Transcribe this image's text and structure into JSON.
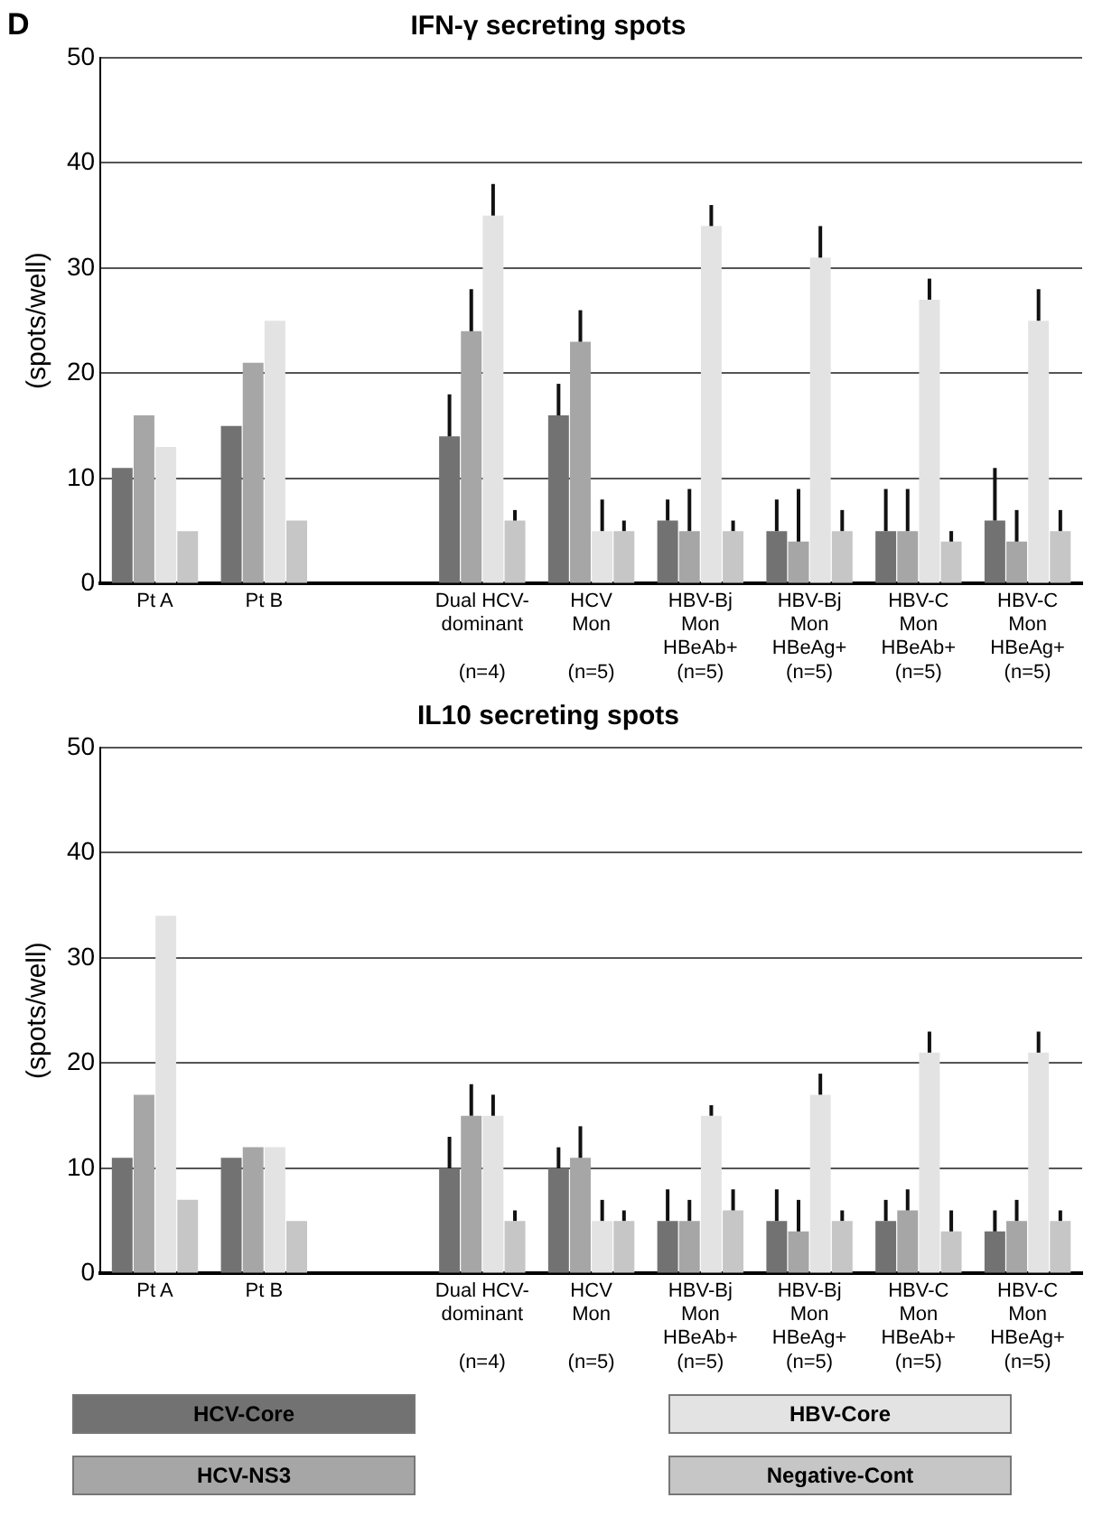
{
  "chart_data": [
    {
      "type": "bar",
      "title": "IFN-γ secreting spots",
      "ylabel": "(spots/well)",
      "annotations": [
        "D"
      ],
      "categories": [
        "Pt A",
        "Pt B",
        null,
        "Dual HCV-\ndominant\n\n(n=4)",
        "HCV\nMon\n\n(n=5)",
        "HBV-Bj\nMon\nHBeAb+\n(n=5)",
        "HBV-Bj\nMon\nHBeAg+\n(n=5)",
        "HBV-C\nMon\nHBeAb+\n(n=5)",
        "HBV-C\nMon\nHBeAg+\n(n=5)"
      ],
      "series": [
        {
          "color": "#727272",
          "values": [
            11,
            15,
            null,
            14,
            16,
            6,
            5,
            5,
            6
          ],
          "errors": [
            null,
            null,
            null,
            [
              14,
              18
            ],
            [
              16,
              19
            ],
            [
              6,
              8
            ],
            [
              5,
              8
            ],
            [
              5,
              9
            ],
            [
              6,
              11
            ]
          ]
        },
        {
          "color": "#a6a6a6",
          "values": [
            16,
            21,
            null,
            24,
            23,
            5,
            4,
            5,
            4
          ],
          "errors": [
            null,
            null,
            null,
            [
              24,
              28
            ],
            [
              23,
              26
            ],
            [
              5,
              9
            ],
            [
              4,
              9
            ],
            [
              5,
              9
            ],
            [
              4,
              7
            ]
          ]
        },
        {
          "color": "#e3e3e3",
          "values": [
            13,
            25,
            null,
            35,
            5,
            34,
            31,
            27,
            25
          ],
          "errors": [
            null,
            null,
            null,
            [
              35,
              38
            ],
            [
              5,
              8
            ],
            [
              34,
              36
            ],
            [
              31,
              34
            ],
            [
              27,
              29
            ],
            [
              25,
              28
            ]
          ]
        },
        {
          "color": "#c6c6c6",
          "values": [
            5,
            6,
            null,
            6,
            5,
            5,
            5,
            4,
            5
          ],
          "errors": [
            null,
            null,
            null,
            [
              6,
              7
            ],
            [
              5,
              6
            ],
            [
              5,
              6
            ],
            [
              5,
              7
            ],
            [
              4,
              5
            ],
            [
              5,
              7
            ]
          ]
        }
      ],
      "ylim": [
        0,
        50
      ],
      "yticks": [
        0,
        10,
        20,
        30,
        40,
        50
      ],
      "grid": "y",
      "legend": false
    },
    {
      "type": "bar",
      "title": "IL10 secreting spots",
      "ylabel": "(spots/well)",
      "categories": [
        "Pt A",
        "Pt B",
        null,
        "Dual HCV-\ndominant\n\n(n=4)",
        "HCV\nMon\n\n(n=5)",
        "HBV-Bj\nMon\nHBeAb+\n(n=5)",
        "HBV-Bj\nMon\nHBeAg+\n(n=5)",
        "HBV-C\nMon\nHBeAb+\n(n=5)",
        "HBV-C\nMon\nHBeAg+\n(n=5)"
      ],
      "series": [
        {
          "name": "HCV-Core",
          "color": "#727272",
          "values": [
            11,
            11,
            null,
            10,
            10,
            5,
            5,
            5,
            4
          ],
          "errors": [
            null,
            null,
            null,
            [
              10,
              13
            ],
            [
              10,
              12
            ],
            [
              5,
              8
            ],
            [
              5,
              8
            ],
            [
              5,
              7
            ],
            [
              4,
              6
            ]
          ]
        },
        {
          "name": "HCV-NS3",
          "color": "#a6a6a6",
          "values": [
            17,
            12,
            null,
            15,
            11,
            5,
            4,
            6,
            5
          ],
          "errors": [
            null,
            null,
            null,
            [
              15,
              18
            ],
            [
              11,
              14
            ],
            [
              5,
              7
            ],
            [
              4,
              7
            ],
            [
              6,
              8
            ],
            [
              5,
              7
            ]
          ]
        },
        {
          "name": "HBV-Core",
          "color": "#e3e3e3",
          "values": [
            34,
            12,
            null,
            15,
            5,
            15,
            17,
            21,
            21
          ],
          "errors": [
            null,
            null,
            null,
            [
              15,
              17
            ],
            [
              5,
              7
            ],
            [
              15,
              16
            ],
            [
              17,
              19
            ],
            [
              21,
              23
            ],
            [
              21,
              23
            ]
          ]
        },
        {
          "name": "Negative-Cont",
          "color": "#c6c6c6",
          "values": [
            7,
            5,
            null,
            5,
            5,
            6,
            5,
            4,
            5
          ],
          "errors": [
            null,
            null,
            null,
            [
              5,
              6
            ],
            [
              5,
              6
            ],
            [
              6,
              8
            ],
            [
              5,
              6
            ],
            [
              4,
              6
            ],
            [
              5,
              6
            ]
          ]
        }
      ],
      "ylim": [
        0,
        50
      ],
      "yticks": [
        0,
        10,
        20,
        30,
        40,
        50
      ],
      "grid": "y",
      "legend": "bottom"
    }
  ]
}
